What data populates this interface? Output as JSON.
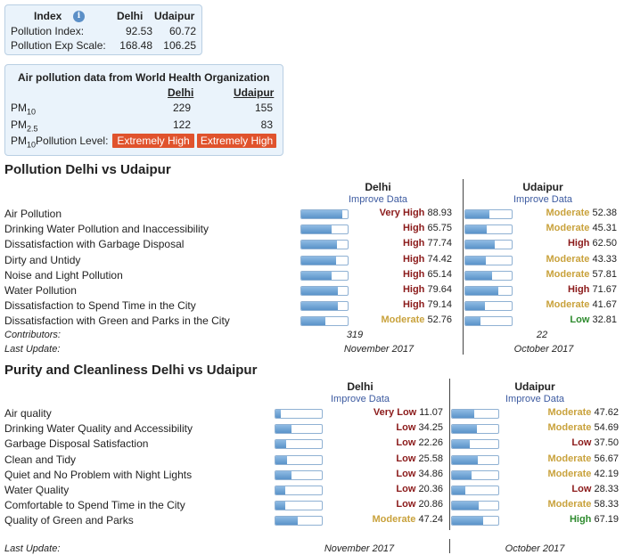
{
  "index_box": {
    "title": "Index",
    "col_delhi": "Delhi",
    "col_udaipur": "Udaipur",
    "rows": [
      {
        "label": "Pollution Index:",
        "delhi": "92.53",
        "udaipur": "60.72"
      },
      {
        "label": "Pollution Exp Scale:",
        "delhi": "168.48",
        "udaipur": "106.25"
      }
    ]
  },
  "who_box": {
    "title": "Air pollution data from World Health Organization",
    "col_delhi": "Delhi",
    "col_udaipur": "Udaipur",
    "pm10_label": "PM",
    "pm10_sub": "10",
    "pm10_delhi": "229",
    "pm10_udaipur": "155",
    "pm25_label": "PM",
    "pm25_sub": "2.5",
    "pm25_delhi": "122",
    "pm25_udaipur": "83",
    "level_label_pre": "PM",
    "level_label_sub": "10",
    "level_label_post": "Pollution Level:",
    "level_delhi": "Extremely High",
    "level_udaipur": "Extremely High",
    "level_color": "#e0532d"
  },
  "pollution": {
    "title": "Pollution Delhi vs Udaipur",
    "delhi_head": "Delhi",
    "udaipur_head": "Udaipur",
    "improve": "Improve Data",
    "rows": [
      {
        "label": "Air Pollution",
        "d_level": "Very High",
        "d_value": "88.93",
        "d_pct": 88.93,
        "u_level": "Moderate",
        "u_value": "52.38",
        "u_pct": 52.38
      },
      {
        "label": "Drinking Water Pollution and Inaccessibility",
        "d_level": "High",
        "d_value": "65.75",
        "d_pct": 65.75,
        "u_level": "Moderate",
        "u_value": "45.31",
        "u_pct": 45.31
      },
      {
        "label": "Dissatisfaction with Garbage Disposal",
        "d_level": "High",
        "d_value": "77.74",
        "d_pct": 77.74,
        "u_level": "High",
        "u_value": "62.50",
        "u_pct": 62.5
      },
      {
        "label": "Dirty and Untidy",
        "d_level": "High",
        "d_value": "74.42",
        "d_pct": 74.42,
        "u_level": "Moderate",
        "u_value": "43.33",
        "u_pct": 43.33
      },
      {
        "label": "Noise and Light Pollution",
        "d_level": "High",
        "d_value": "65.14",
        "d_pct": 65.14,
        "u_level": "Moderate",
        "u_value": "57.81",
        "u_pct": 57.81
      },
      {
        "label": "Water Pollution",
        "d_level": "High",
        "d_value": "79.64",
        "d_pct": 79.64,
        "u_level": "High",
        "u_value": "71.67",
        "u_pct": 71.67
      },
      {
        "label": "Dissatisfaction to Spend Time in the City",
        "d_level": "High",
        "d_value": "79.14",
        "d_pct": 79.14,
        "u_level": "Moderate",
        "u_value": "41.67",
        "u_pct": 41.67
      },
      {
        "label": "Dissatisfaction with Green and Parks in the City",
        "d_level": "Moderate",
        "d_value": "52.76",
        "d_pct": 52.76,
        "u_level": "Low",
        "u_value": "32.81",
        "u_pct": 32.81
      }
    ],
    "contributors_label": "Contributors:",
    "contributors_delhi": "319",
    "contributors_udaipur": "22",
    "last_update_label": "Last Update:",
    "last_update_delhi": "November 2017",
    "last_update_udaipur": "October 2017"
  },
  "purity": {
    "title": "Purity and Cleanliness Delhi vs Udaipur",
    "delhi_head": "Delhi",
    "udaipur_head": "Udaipur",
    "improve": "Improve Data",
    "rows": [
      {
        "label": "Air quality",
        "d_level": "Very Low",
        "d_value": "11.07",
        "d_pct": 11.07,
        "u_level": "Moderate",
        "u_value": "47.62",
        "u_pct": 47.62
      },
      {
        "label": "Drinking Water Quality and Accessibility",
        "d_level": "Low",
        "d_value": "34.25",
        "d_pct": 34.25,
        "u_level": "Moderate",
        "u_value": "54.69",
        "u_pct": 54.69
      },
      {
        "label": "Garbage Disposal Satisfaction",
        "d_level": "Low",
        "d_value": "22.26",
        "d_pct": 22.26,
        "u_level": "Low",
        "u_value": "37.50",
        "u_pct": 37.5
      },
      {
        "label": "Clean and Tidy",
        "d_level": "Low",
        "d_value": "25.58",
        "d_pct": 25.58,
        "u_level": "Moderate",
        "u_value": "56.67",
        "u_pct": 56.67
      },
      {
        "label": "Quiet and No Problem with Night Lights",
        "d_level": "Low",
        "d_value": "34.86",
        "d_pct": 34.86,
        "u_level": "Moderate",
        "u_value": "42.19",
        "u_pct": 42.19
      },
      {
        "label": "Water Quality",
        "d_level": "Low",
        "d_value": "20.36",
        "d_pct": 20.36,
        "u_level": "Low",
        "u_value": "28.33",
        "u_pct": 28.33
      },
      {
        "label": "Comfortable to Spend Time in the City",
        "d_level": "Low",
        "d_value": "20.86",
        "d_pct": 20.86,
        "u_level": "Moderate",
        "u_value": "58.33",
        "u_pct": 58.33
      },
      {
        "label": "Quality of Green and Parks",
        "d_level": "Moderate",
        "d_value": "47.24",
        "d_pct": 47.24,
        "u_level": "High",
        "u_value": "67.19",
        "u_pct": 67.19
      }
    ],
    "last_update_label": "Last Update:",
    "last_update_delhi": "November 2017",
    "last_update_udaipur": "October 2017"
  },
  "colors": {
    "bar_fill": "#5a93c9",
    "level_bad": "#8b1a1a",
    "level_moderate": "#c9a23c",
    "level_good": "#2e8b2e",
    "link": "#3c5aa0"
  }
}
